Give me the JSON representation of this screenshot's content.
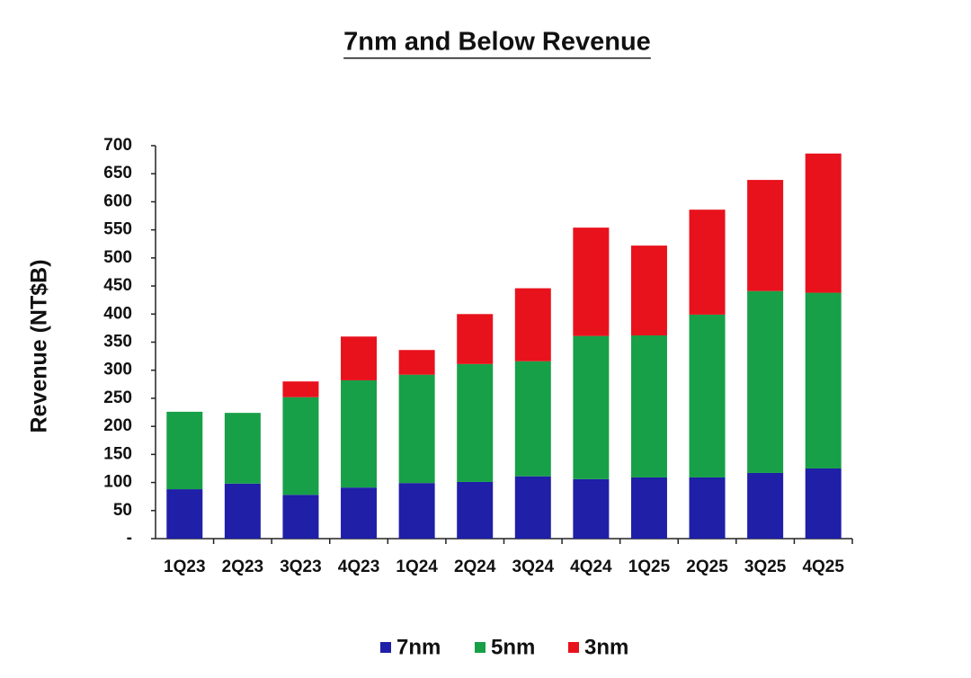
{
  "chart_data": {
    "type": "stacked_bar",
    "title": "7nm and Below Revenue",
    "y_label": "Revenue (NT$B)",
    "categories": [
      "1Q23",
      "2Q23",
      "3Q23",
      "4Q23",
      "1Q24",
      "2Q24",
      "3Q24",
      "4Q24",
      "1Q25",
      "2Q25",
      "3Q25",
      "4Q25"
    ],
    "series": [
      {
        "name": "7nm",
        "color": "#1f1fa8",
        "values": [
          88,
          98,
          78,
          91,
          99,
          101,
          111,
          106,
          109,
          109,
          117,
          125
        ]
      },
      {
        "name": "5nm",
        "color": "#17a048",
        "values": [
          138,
          126,
          174,
          191,
          193,
          210,
          205,
          255,
          253,
          290,
          324,
          313
        ]
      },
      {
        "name": "3nm",
        "color": "#e8121c",
        "values": [
          0,
          0,
          28,
          78,
          44,
          89,
          130,
          193,
          160,
          187,
          198,
          248
        ]
      }
    ],
    "ylim": [
      0,
      700
    ],
    "yticks": [
      {
        "value": 0,
        "label": "-"
      },
      50,
      100,
      150,
      200,
      250,
      300,
      350,
      400,
      450,
      500,
      550,
      600,
      650,
      700
    ],
    "grid": false,
    "legend": "bottom"
  }
}
